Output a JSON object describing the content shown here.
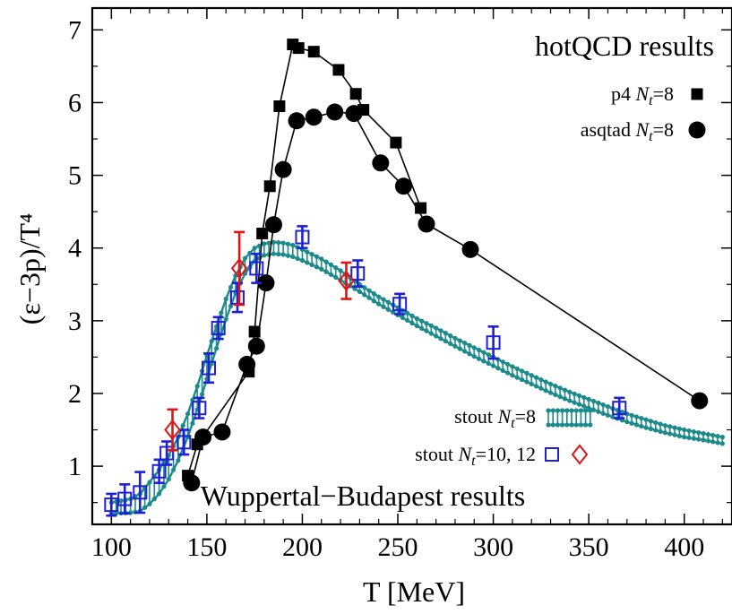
{
  "chart_data": {
    "type": "scatter",
    "xlabel": "T [MeV]",
    "ylabel": "(ε−3p)/T⁴",
    "xlim": [
      90,
      425
    ],
    "ylim": [
      0.2,
      7.3
    ],
    "x_ticks": [
      "100",
      "150",
      "200",
      "250",
      "300",
      "350",
      "400"
    ],
    "y_ticks": [
      "1",
      "2",
      "3",
      "4",
      "5",
      "6",
      "7"
    ],
    "grid": false,
    "annotations": {
      "hotqcd_title": "hotQCD results",
      "wb_title": "Wuppertal−Budapest results"
    },
    "legend_labels": {
      "p4": "p4 N_t=8",
      "asqtad": "asqtad N_t=8",
      "stout8": "stout N_t=8",
      "stout1012": "stout N_t=10, 12"
    },
    "series": [
      {
        "name": "p4 Nt=8",
        "color": "#000000",
        "marker": "filled-square",
        "connected": true,
        "points": [
          [
            140,
            0.87
          ],
          [
            145,
            1.3
          ],
          [
            172,
            2.3
          ],
          [
            175,
            2.85
          ],
          [
            179,
            4.2
          ],
          [
            183,
            4.85
          ],
          [
            188,
            5.95
          ],
          [
            195,
            6.8
          ],
          [
            198,
            6.75
          ],
          [
            206,
            6.7
          ],
          [
            219,
            6.45
          ],
          [
            228,
            6.12
          ],
          [
            232,
            5.9
          ],
          [
            249,
            5.45
          ],
          [
            262,
            4.55
          ]
        ]
      },
      {
        "name": "asqtad Nt=8",
        "color": "#000000",
        "marker": "filled-circle",
        "connected": true,
        "points": [
          [
            142,
            0.77
          ],
          [
            148,
            1.4
          ],
          [
            158,
            1.47
          ],
          [
            171,
            2.4
          ],
          [
            176,
            2.65
          ],
          [
            181,
            3.52
          ],
          [
            185,
            4.32
          ],
          [
            190,
            5.08
          ],
          [
            197,
            5.75
          ],
          [
            206,
            5.8
          ],
          [
            217,
            5.87
          ],
          [
            227,
            5.85
          ],
          [
            241,
            5.17
          ],
          [
            253,
            4.85
          ],
          [
            265,
            4.33
          ],
          [
            288,
            3.98
          ],
          [
            408,
            1.9
          ]
        ]
      },
      {
        "name": "stout Nt=8 upper",
        "color": "#1a8a8a",
        "band_top": true,
        "points": [
          [
            100,
            0.5
          ],
          [
            110,
            0.55
          ],
          [
            115,
            0.62
          ],
          [
            120,
            0.78
          ],
          [
            125,
            0.95
          ],
          [
            130,
            1.15
          ],
          [
            135,
            1.4
          ],
          [
            140,
            1.72
          ],
          [
            145,
            2.1
          ],
          [
            150,
            2.52
          ],
          [
            155,
            2.92
          ],
          [
            160,
            3.3
          ],
          [
            165,
            3.62
          ],
          [
            170,
            3.86
          ],
          [
            175,
            4.0
          ],
          [
            180,
            4.06
          ],
          [
            185,
            4.08
          ],
          [
            190,
            4.07
          ],
          [
            195,
            4.04
          ],
          [
            200,
            3.98
          ],
          [
            210,
            3.85
          ],
          [
            220,
            3.69
          ],
          [
            230,
            3.5
          ],
          [
            240,
            3.33
          ],
          [
            250,
            3.18
          ],
          [
            260,
            3.03
          ],
          [
            270,
            2.9
          ],
          [
            280,
            2.76
          ],
          [
            290,
            2.63
          ],
          [
            300,
            2.5
          ],
          [
            310,
            2.37
          ],
          [
            320,
            2.25
          ],
          [
            330,
            2.13
          ],
          [
            340,
            2.02
          ],
          [
            350,
            1.92
          ],
          [
            360,
            1.82
          ],
          [
            370,
            1.72
          ],
          [
            380,
            1.64
          ],
          [
            390,
            1.56
          ],
          [
            400,
            1.5
          ],
          [
            410,
            1.45
          ],
          [
            420,
            1.4
          ]
        ]
      },
      {
        "name": "stout Nt=8 lower",
        "color": "#1a8a8a",
        "band_bottom": true,
        "points": [
          [
            100,
            0.35
          ],
          [
            110,
            0.36
          ],
          [
            115,
            0.38
          ],
          [
            120,
            0.48
          ],
          [
            125,
            0.62
          ],
          [
            130,
            0.82
          ],
          [
            135,
            1.08
          ],
          [
            140,
            1.4
          ],
          [
            145,
            1.78
          ],
          [
            150,
            2.2
          ],
          [
            155,
            2.62
          ],
          [
            160,
            3.02
          ],
          [
            165,
            3.38
          ],
          [
            170,
            3.65
          ],
          [
            175,
            3.82
          ],
          [
            180,
            3.9
          ],
          [
            185,
            3.92
          ],
          [
            190,
            3.91
          ],
          [
            195,
            3.88
          ],
          [
            200,
            3.83
          ],
          [
            210,
            3.71
          ],
          [
            220,
            3.56
          ],
          [
            230,
            3.4
          ],
          [
            240,
            3.23
          ],
          [
            250,
            3.08
          ],
          [
            260,
            2.93
          ],
          [
            270,
            2.79
          ],
          [
            280,
            2.65
          ],
          [
            290,
            2.51
          ],
          [
            300,
            2.38
          ],
          [
            310,
            2.25
          ],
          [
            320,
            2.13
          ],
          [
            330,
            2.01
          ],
          [
            340,
            1.9
          ],
          [
            350,
            1.8
          ],
          [
            360,
            1.7
          ],
          [
            370,
            1.61
          ],
          [
            380,
            1.53
          ],
          [
            390,
            1.46
          ],
          [
            400,
            1.4
          ],
          [
            410,
            1.36
          ],
          [
            420,
            1.31
          ]
        ]
      },
      {
        "name": "stout Nt=10,12 squares",
        "color": "#1f1fd6",
        "marker": "open-square",
        "points": [
          [
            100,
            0.47,
            0.15
          ],
          [
            107,
            0.55,
            0.2
          ],
          [
            115,
            0.64,
            0.28
          ],
          [
            125,
            0.93,
            0.16
          ],
          [
            129,
            1.18,
            0.16
          ],
          [
            138,
            1.33,
            0.17
          ],
          [
            146,
            1.8,
            0.14
          ],
          [
            151,
            2.35,
            0.2
          ],
          [
            156,
            2.9,
            0.15
          ],
          [
            166,
            3.32,
            0.2
          ],
          [
            176,
            3.72,
            0.2
          ],
          [
            200,
            4.15,
            0.15
          ],
          [
            229,
            3.65,
            0.18
          ],
          [
            251,
            3.23,
            0.14
          ],
          [
            300,
            2.7,
            0.22
          ],
          [
            366,
            1.8,
            0.14
          ]
        ]
      },
      {
        "name": "stout Nt=10,12 diamonds",
        "color": "#e01414",
        "marker": "open-diamond",
        "points": [
          [
            132,
            1.5,
            0.28
          ],
          [
            167,
            3.72,
            0.5
          ],
          [
            223,
            3.55,
            0.25
          ]
        ]
      }
    ]
  }
}
